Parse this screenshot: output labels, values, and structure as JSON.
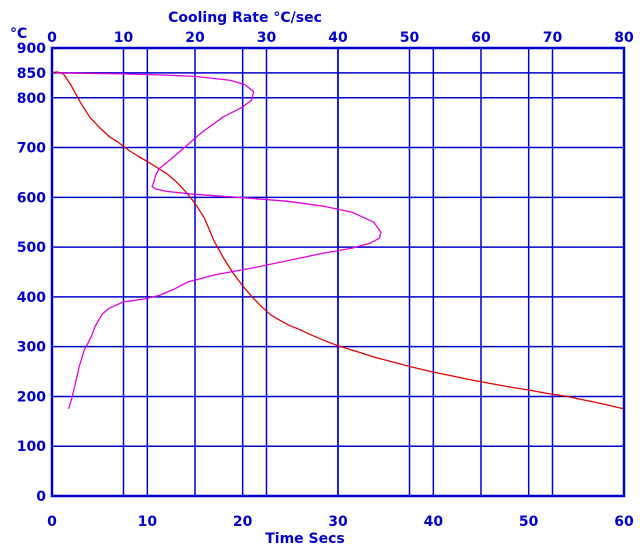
{
  "chart_data": {
    "type": "line",
    "colors": {
      "grid": "#0000cc",
      "frame": "#0000cc",
      "bottom_axis_text": "#0000cc",
      "top_axis_text": "#0000cc",
      "left_axis_text": "#0000cc",
      "temperature_series": "#e00000",
      "cooling_rate_series": "#e000e0"
    },
    "y_axis": {
      "unit_label": "°C",
      "ylim": [
        0,
        900
      ],
      "ticks": [
        0,
        100,
        200,
        300,
        400,
        500,
        600,
        700,
        800,
        850,
        900
      ],
      "tick_labels": [
        "0",
        "100",
        "200",
        "300",
        "400",
        "500",
        "600",
        "700",
        "800",
        "850",
        "900"
      ]
    },
    "x_bottom_axis": {
      "label": "Time  Secs",
      "xlim": [
        0,
        60
      ],
      "ticks": [
        0,
        10,
        20,
        30,
        40,
        50,
        60
      ],
      "tick_labels": [
        "0",
        "10",
        "20",
        "30",
        "40",
        "50",
        "60"
      ]
    },
    "x_top_axis": {
      "label": "Cooling Rate  °C/sec",
      "xlim": [
        0,
        80
      ],
      "ticks": [
        0,
        10,
        20,
        30,
        40,
        50,
        60,
        70,
        80
      ],
      "tick_labels": [
        "0",
        "10",
        "20",
        "30",
        "40",
        "50",
        "60",
        "70",
        "80"
      ]
    },
    "grid": true,
    "series": [
      {
        "axis": "bottom",
        "points": [
          [
            0.0,
            850
          ],
          [
            0.5,
            852
          ],
          [
            1.2,
            848
          ],
          [
            2,
            825
          ],
          [
            3,
            790
          ],
          [
            4,
            760
          ],
          [
            5,
            740
          ],
          [
            6,
            722
          ],
          [
            7,
            710
          ],
          [
            8,
            695
          ],
          [
            9,
            683
          ],
          [
            10,
            672
          ],
          [
            11,
            660
          ],
          [
            12,
            648
          ],
          [
            13,
            632
          ],
          [
            14,
            612
          ],
          [
            15,
            588
          ],
          [
            16,
            558
          ],
          [
            17,
            512
          ],
          [
            18,
            478
          ],
          [
            19,
            448
          ],
          [
            20,
            422
          ],
          [
            21,
            400
          ],
          [
            22,
            380
          ],
          [
            23,
            363
          ],
          [
            24,
            352
          ],
          [
            25,
            342
          ],
          [
            26,
            334
          ],
          [
            27,
            325
          ],
          [
            28,
            317
          ],
          [
            29,
            309
          ],
          [
            30,
            302
          ],
          [
            32,
            290
          ],
          [
            34,
            278
          ],
          [
            36,
            268
          ],
          [
            38,
            258
          ],
          [
            40,
            249
          ],
          [
            42,
            241
          ],
          [
            44,
            233
          ],
          [
            46,
            226
          ],
          [
            48,
            219
          ],
          [
            50,
            213
          ],
          [
            52,
            206
          ],
          [
            54,
            200
          ],
          [
            56,
            192
          ],
          [
            58,
            184
          ],
          [
            60,
            175
          ]
        ]
      },
      {
        "axis": "top",
        "points": [
          [
            0.5,
            850
          ],
          [
            5,
            849
          ],
          [
            10,
            848
          ],
          [
            15,
            846
          ],
          [
            20,
            843
          ],
          [
            25,
            835
          ],
          [
            27,
            826
          ],
          [
            28.2,
            812
          ],
          [
            27.9,
            795
          ],
          [
            26.5,
            780
          ],
          [
            24,
            762
          ],
          [
            21,
            731
          ],
          [
            18.5,
            700
          ],
          [
            16.5,
            675
          ],
          [
            15,
            658
          ],
          [
            14.5,
            645
          ],
          [
            14.3,
            633
          ],
          [
            14,
            622
          ],
          [
            14.5,
            617
          ],
          [
            16,
            612
          ],
          [
            20,
            606
          ],
          [
            26,
            600
          ],
          [
            33,
            592
          ],
          [
            38,
            582
          ],
          [
            42,
            570
          ],
          [
            45,
            550
          ],
          [
            46,
            530
          ],
          [
            45.8,
            518
          ],
          [
            44.5,
            508
          ],
          [
            42,
            498
          ],
          [
            38,
            488
          ],
          [
            33,
            473
          ],
          [
            28,
            458
          ],
          [
            23,
            445
          ],
          [
            19,
            430
          ],
          [
            17,
            415
          ],
          [
            15,
            403
          ],
          [
            13,
            396
          ],
          [
            10,
            390
          ],
          [
            8,
            377
          ],
          [
            7,
            365
          ],
          [
            6,
            340
          ],
          [
            5.5,
            320
          ],
          [
            4.5,
            293
          ],
          [
            3.8,
            260
          ],
          [
            3.3,
            228
          ],
          [
            2.8,
            198
          ],
          [
            2.5,
            183
          ],
          [
            2.3,
            175
          ]
        ]
      }
    ]
  }
}
